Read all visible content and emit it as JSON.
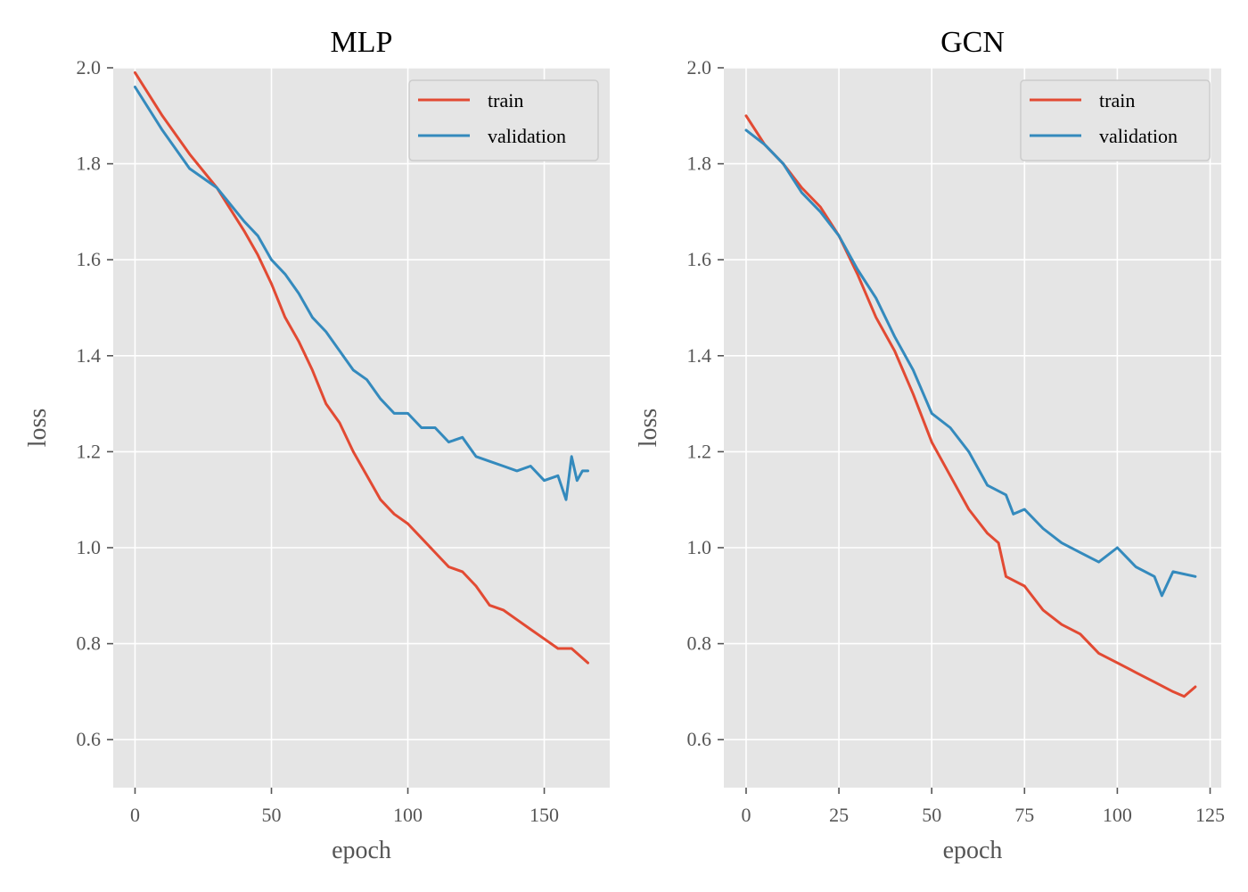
{
  "chart_data": [
    {
      "type": "line",
      "title": "MLP",
      "xlabel": "epoch",
      "ylabel": "loss",
      "xlim": [
        -8,
        174
      ],
      "ylim": [
        0.5,
        2.0
      ],
      "xticks": [
        0,
        50,
        100,
        150
      ],
      "yticks": [
        0.6,
        0.8,
        1.0,
        1.2,
        1.4,
        1.6,
        1.8,
        2.0
      ],
      "xtick_labels": [
        "0",
        "50",
        "100",
        "150"
      ],
      "ytick_labels": [
        "0.6",
        "0.8",
        "1.0",
        "1.2",
        "1.4",
        "1.6",
        "1.8",
        "2.0"
      ],
      "grid": true,
      "legend_position": "top-right",
      "series": [
        {
          "name": "train",
          "color": "#E24A33",
          "x": [
            0,
            10,
            20,
            30,
            40,
            45,
            50,
            55,
            60,
            65,
            70,
            75,
            80,
            85,
            90,
            95,
            100,
            105,
            110,
            115,
            120,
            125,
            130,
            135,
            140,
            145,
            150,
            155,
            160,
            166
          ],
          "y": [
            1.99,
            1.9,
            1.82,
            1.75,
            1.66,
            1.61,
            1.55,
            1.48,
            1.43,
            1.37,
            1.3,
            1.26,
            1.2,
            1.15,
            1.1,
            1.07,
            1.05,
            1.02,
            0.99,
            0.96,
            0.95,
            0.92,
            0.88,
            0.87,
            0.85,
            0.83,
            0.81,
            0.79,
            0.79,
            0.76
          ]
        },
        {
          "name": "validation",
          "color": "#348ABD",
          "x": [
            0,
            10,
            20,
            30,
            40,
            45,
            50,
            55,
            60,
            65,
            70,
            75,
            80,
            85,
            90,
            95,
            100,
            105,
            110,
            115,
            120,
            125,
            130,
            135,
            140,
            145,
            150,
            155,
            158,
            160,
            162,
            164,
            166
          ],
          "y": [
            1.96,
            1.87,
            1.79,
            1.75,
            1.68,
            1.65,
            1.6,
            1.57,
            1.53,
            1.48,
            1.45,
            1.41,
            1.37,
            1.35,
            1.31,
            1.28,
            1.28,
            1.25,
            1.25,
            1.22,
            1.23,
            1.19,
            1.18,
            1.17,
            1.16,
            1.17,
            1.14,
            1.15,
            1.1,
            1.19,
            1.14,
            1.16,
            1.16
          ]
        }
      ]
    },
    {
      "type": "line",
      "title": "GCN",
      "xlabel": "epoch",
      "ylabel": "loss",
      "xlim": [
        -6,
        128
      ],
      "ylim": [
        0.5,
        2.0
      ],
      "xticks": [
        0,
        25,
        50,
        75,
        100,
        125
      ],
      "yticks": [
        0.6,
        0.8,
        1.0,
        1.2,
        1.4,
        1.6,
        1.8,
        2.0
      ],
      "xtick_labels": [
        "0",
        "25",
        "50",
        "75",
        "100",
        "125"
      ],
      "ytick_labels": [
        "0.6",
        "0.8",
        "1.0",
        "1.2",
        "1.4",
        "1.6",
        "1.8",
        "2.0"
      ],
      "grid": true,
      "legend_position": "top-right",
      "series": [
        {
          "name": "train",
          "color": "#E24A33",
          "x": [
            0,
            5,
            10,
            15,
            20,
            25,
            30,
            35,
            40,
            45,
            50,
            55,
            60,
            65,
            68,
            70,
            75,
            80,
            85,
            90,
            95,
            100,
            105,
            110,
            115,
            118,
            121
          ],
          "y": [
            1.9,
            1.84,
            1.8,
            1.75,
            1.71,
            1.65,
            1.57,
            1.48,
            1.41,
            1.32,
            1.22,
            1.15,
            1.08,
            1.03,
            1.01,
            0.94,
            0.92,
            0.87,
            0.84,
            0.82,
            0.78,
            0.76,
            0.74,
            0.72,
            0.7,
            0.69,
            0.71
          ]
        },
        {
          "name": "validation",
          "color": "#348ABD",
          "x": [
            0,
            5,
            10,
            15,
            20,
            25,
            30,
            35,
            40,
            45,
            50,
            55,
            60,
            65,
            70,
            72,
            75,
            80,
            85,
            90,
            95,
            100,
            105,
            110,
            112,
            115,
            121
          ],
          "y": [
            1.87,
            1.84,
            1.8,
            1.74,
            1.7,
            1.65,
            1.58,
            1.52,
            1.44,
            1.37,
            1.28,
            1.25,
            1.2,
            1.13,
            1.11,
            1.07,
            1.08,
            1.04,
            1.01,
            0.99,
            0.97,
            1.0,
            0.96,
            0.94,
            0.9,
            0.95,
            0.94
          ]
        }
      ]
    }
  ]
}
